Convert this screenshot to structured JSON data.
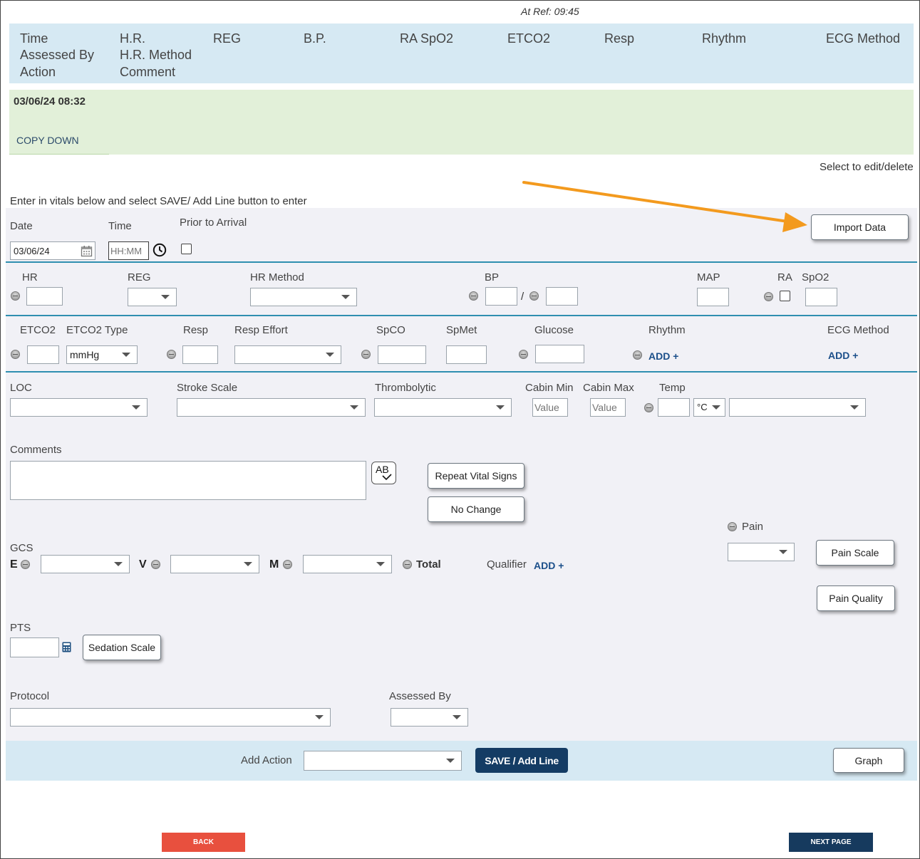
{
  "ref_time": "At Ref: 09:45",
  "table_header": {
    "col1": [
      "Time",
      "Assessed By",
      "Action"
    ],
    "col2": [
      "H.R.",
      "H.R. Method",
      "Comment"
    ],
    "reg": "REG",
    "bp": "B.P.",
    "ra_spo2": "RA SpO2",
    "etco2": "ETCO2",
    "resp": "Resp",
    "rhythm": "Rhythm",
    "ecg_method": "ECG Method"
  },
  "record": {
    "datetime": "03/06/24 08:32",
    "copy_down": "COPY DOWN"
  },
  "select_hint": "Select to edit/delete",
  "instructions": "Enter in vitals below and select SAVE/ Add Line button to enter",
  "date_time": {
    "date_label": "Date",
    "date_value": "03/06/24",
    "time_label": "Time",
    "time_placeholder": "HH:MM",
    "prior_label": "Prior to Arrival",
    "import_button": "Import Data"
  },
  "row_hr": {
    "hr": "HR",
    "reg": "REG",
    "hr_method": "HR Method",
    "bp": "BP",
    "bp_sep": "/",
    "map": "MAP",
    "ra": "RA",
    "spo2": "SpO2"
  },
  "row_etco2": {
    "etco2": "ETCO2",
    "etco2_type": "ETCO2 Type",
    "etco2_type_value": "mmHg",
    "resp": "Resp",
    "resp_effort": "Resp Effort",
    "spco": "SpCO",
    "spmet": "SpMet",
    "glucose": "Glucose",
    "rhythm": "Rhythm",
    "rhythm_add": "ADD +",
    "ecg_method": "ECG Method",
    "ecg_add": "ADD +"
  },
  "row_loc": {
    "loc": "LOC",
    "stroke": "Stroke Scale",
    "thrombolytic": "Thrombolytic",
    "cabin_min": "Cabin Min",
    "cabin_max": "Cabin Max",
    "value_placeholder": "Value",
    "temp": "Temp",
    "temp_unit": "°C"
  },
  "comments": {
    "label": "Comments",
    "spell_icon": "AB",
    "repeat_button": "Repeat Vital Signs",
    "no_change_button": "No Change"
  },
  "pain": {
    "label": "Pain",
    "scale_button": "Pain Scale",
    "quality_button": "Pain Quality"
  },
  "gcs": {
    "label": "GCS",
    "e": "E",
    "v": "V",
    "m": "M",
    "total": "Total",
    "qualifier": "Qualifier",
    "qualifier_add": "ADD +"
  },
  "pts": {
    "label": "PTS",
    "sedation_button": "Sedation Scale"
  },
  "protocol": {
    "label": "Protocol",
    "assessed_by": "Assessed By"
  },
  "footer_bar": {
    "add_action": "Add Action",
    "save_button": "SAVE / Add Line",
    "graph_button": "Graph"
  },
  "nav": {
    "back": "BACK",
    "next": "NEXT PAGE"
  },
  "colors": {
    "header_bg": "#d6e9f3",
    "record_bg": "#e2f0d9",
    "form_bg": "#f1f1f6",
    "separator": "#2f8fb0",
    "save_bg": "#143c64",
    "back_bg": "#e8503e",
    "next_bg": "#163a5e",
    "arrow": "#f39a1e"
  }
}
